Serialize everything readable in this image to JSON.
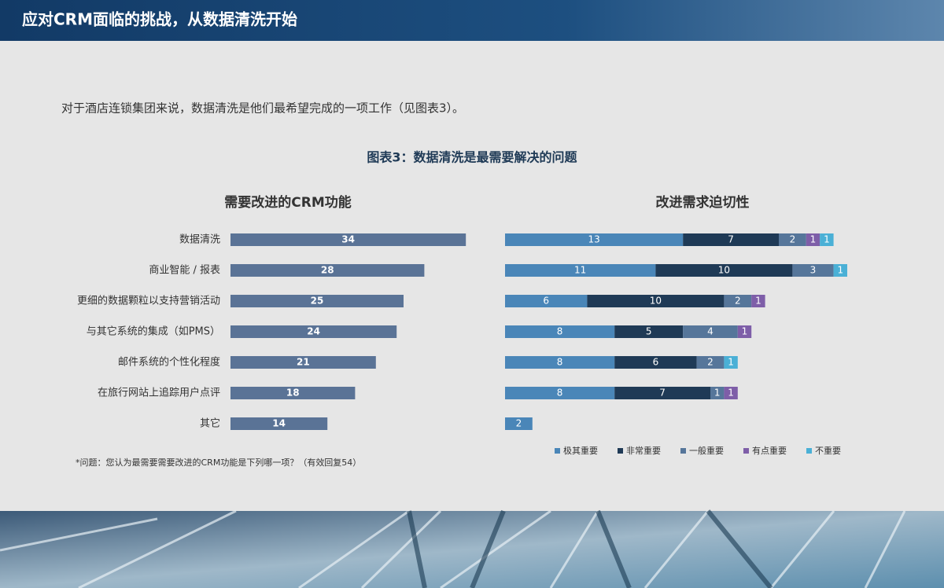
{
  "header": {
    "title": "应对CRM面临的挑战，从数据清洗开始"
  },
  "intro": "对于酒店连锁集团来说，数据清洗是他们最希望完成的一项工作（见图表3）。",
  "figure_title": "图表3：数据清洗是最需要解决的问题",
  "footnote": "*问题：您认为最需要需要改进的CRM功能是下列哪一项？（有效回复54）",
  "chart_data": [
    {
      "type": "hbar",
      "title": "需要改进的CRM功能",
      "categories": [
        "数据清洗",
        "商业智能 / 报表",
        "更细的数据颗粒以支持营销活动",
        "与其它系统的集成（如PMS）",
        "邮件系统的个性化程度",
        "在旅行网站上追踪用户点评",
        "其它"
      ],
      "values": [
        34,
        28,
        25,
        24,
        21,
        18,
        14
      ],
      "color": "#5a7396"
    },
    {
      "type": "hstack",
      "title": "改进需求迫切性",
      "series": [
        {
          "name": "极其重要",
          "color": "#4a86b8",
          "values": [
            13,
            11,
            6,
            8,
            8,
            8,
            2
          ]
        },
        {
          "name": "非常重要",
          "color": "#1f3a56",
          "values": [
            7,
            10,
            10,
            5,
            6,
            7,
            null
          ]
        },
        {
          "name": "一般重要",
          "color": "#56769a",
          "values": [
            2,
            3,
            2,
            4,
            2,
            1,
            null
          ]
        },
        {
          "name": "有点重要",
          "color": "#7e5ea8",
          "values": [
            1,
            null,
            1,
            1,
            null,
            1,
            null
          ]
        },
        {
          "name": "不重要",
          "color": "#4ab0d6",
          "values": [
            1,
            1,
            null,
            null,
            1,
            null,
            null
          ]
        }
      ]
    }
  ]
}
